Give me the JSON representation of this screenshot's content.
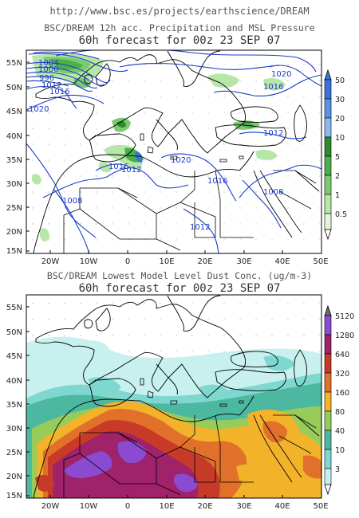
{
  "header": {
    "url": "http://www.bsc.es/projects/earthscience/DREAM"
  },
  "panel1": {
    "title_line1": "BSC/DREAM 12h acc. Precipitation and MSL Pressure",
    "title_line2": "60h forecast for 00z 23 SEP 07",
    "y_ticks": [
      "55N",
      "50N",
      "45N",
      "40N",
      "35N",
      "30N",
      "25N",
      "20N",
      "15N"
    ],
    "x_ticks": [
      "20W",
      "10W",
      "0",
      "10E",
      "20E",
      "30E",
      "40E",
      "50E"
    ],
    "colorbar_labels": [
      "50",
      "30",
      "20",
      "10",
      "5",
      "2",
      "1",
      "0.5"
    ],
    "colorbar_colors": [
      "#3a74d8",
      "#5a92e6",
      "#8ab8f0",
      "#2e8a2e",
      "#4caf4a",
      "#7cca6e",
      "#b6e6a8",
      "#e3f6d8"
    ],
    "isobar_labels": [
      "1020",
      "1016",
      "1012",
      "1008",
      "1004",
      "1000",
      "996",
      "992",
      "1016",
      "1020",
      "1012",
      "1016",
      "1012",
      "1020",
      "1016",
      "1012",
      "1008",
      "1008",
      "1012"
    ]
  },
  "panel2": {
    "title_line1": "BSC/DREAM Lowest Model Level Dust Conc. (ug/m-3)",
    "title_line2": "60h forecast for 00z 23 SEP 07",
    "y_ticks": [
      "55N",
      "50N",
      "45N",
      "40N",
      "35N",
      "30N",
      "25N",
      "20N",
      "15N"
    ],
    "x_ticks": [
      "20W",
      "10W",
      "0",
      "10E",
      "20E",
      "30E",
      "40E",
      "50E"
    ],
    "colorbar_labels": [
      "5120",
      "1280",
      "640",
      "320",
      "160",
      "80",
      "40",
      "10",
      "3"
    ],
    "colorbar_colors": [
      "#8a4bd0",
      "#a0226a",
      "#c83a28",
      "#e0702a",
      "#f2b22a",
      "#98cc5a",
      "#4cb8a0",
      "#7ed8d0",
      "#c8f0ee"
    ]
  },
  "colors": {
    "isobar": "#1a3cc8",
    "land_outline": "#000000"
  }
}
